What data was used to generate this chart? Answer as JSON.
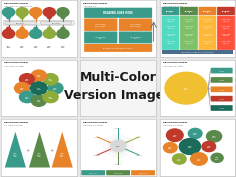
{
  "title": "Multi-Color\nVersion Images",
  "title_fontsize": 9,
  "background": "#e8e8e8",
  "colors": {
    "teal": "#3a9b8a",
    "orange": "#e8832a",
    "red": "#c0392b",
    "green": "#5a8a4a",
    "dark_teal": "#1a6b5a",
    "dark_green": "#4a7a38",
    "olive": "#8fac3a",
    "blue_gray": "#4a6b8a",
    "dark_gray": "#555566",
    "light_gray": "#d0d0d0",
    "mid_teal": "#2a7a6a",
    "gold": "#e8a020"
  }
}
